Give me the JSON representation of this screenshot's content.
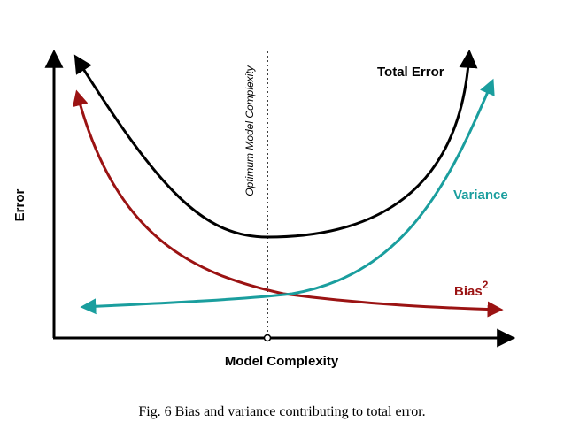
{
  "diagram": {
    "y_axis_label": "Error",
    "x_axis_label": "Model Complexity",
    "optimum_label": "Optimum Model Complexity",
    "curves": {
      "total_error": {
        "label": "Total Error",
        "color": "#000000"
      },
      "variance": {
        "label": "Variance",
        "color": "#1a9e9e"
      },
      "bias": {
        "label": "Bias",
        "superscript": "2",
        "color": "#9b1313"
      }
    }
  },
  "caption": "Fig. 6 Bias and variance contributing to total error."
}
